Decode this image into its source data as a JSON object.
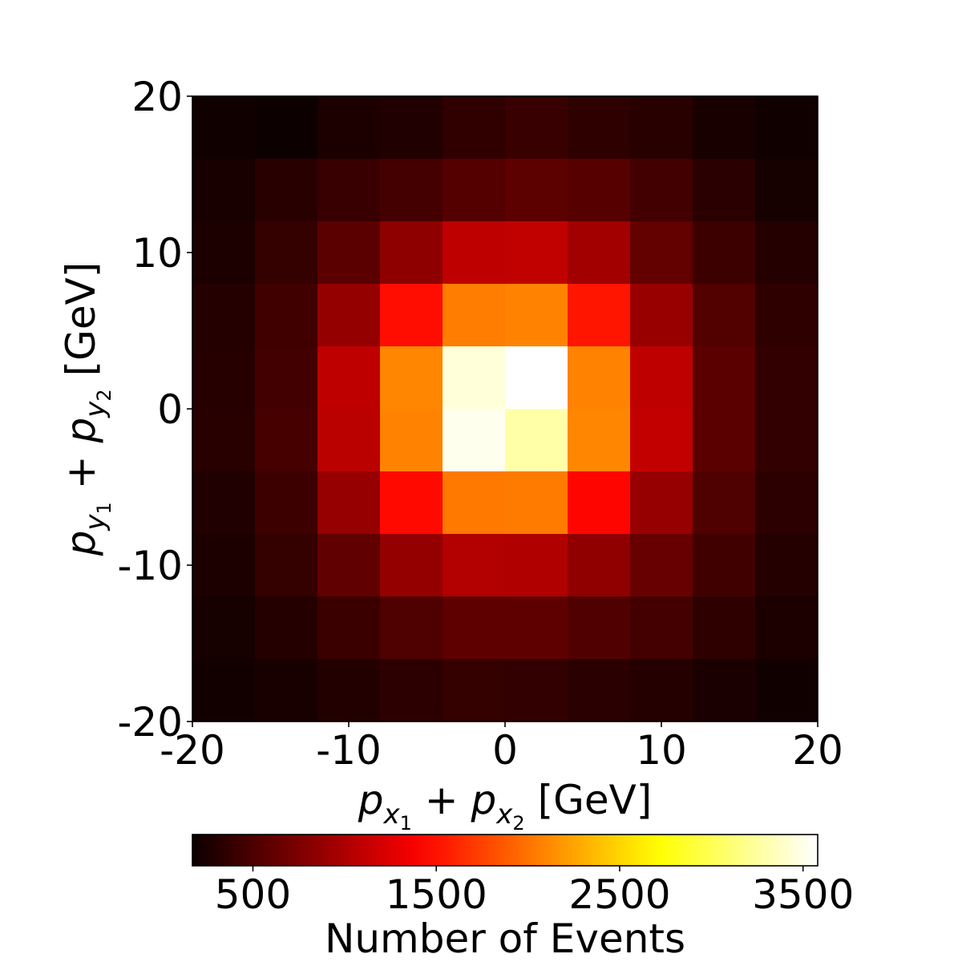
{
  "chart_data": {
    "type": "heatmap",
    "title": "",
    "xlabel": {
      "var": "p",
      "sub1": "x",
      "subsub1": "1",
      "plus": " + ",
      "sub2": "x",
      "subsub2": "2",
      "unit": " [GeV]"
    },
    "ylabel": {
      "var": "p",
      "sub1": "y",
      "subsub1": "1",
      "plus": " + ",
      "sub2": "y",
      "subsub2": "2",
      "unit": " [GeV]"
    },
    "xlim": [
      -20,
      20
    ],
    "ylim": [
      -20,
      20
    ],
    "x_edges": [
      -20,
      -16,
      -12,
      -8,
      -4,
      0,
      4,
      8,
      12,
      16,
      20
    ],
    "y_edges": [
      -20,
      -16,
      -12,
      -8,
      -4,
      0,
      4,
      8,
      12,
      16,
      20
    ],
    "x_ticks": [
      -20,
      -10,
      0,
      10,
      20
    ],
    "x_tick_labels": [
      "-20",
      "-10",
      "0",
      "10",
      "20"
    ],
    "y_ticks": [
      -20,
      -10,
      0,
      10,
      20
    ],
    "y_tick_labels": [
      "-20",
      "-10",
      "0",
      "10",
      "20"
    ],
    "colormap": "hot",
    "color_range": [
      170,
      3580
    ],
    "colorbar": {
      "label": "Number of Events",
      "ticks": [
        500,
        1500,
        2500,
        3500
      ],
      "tick_labels": [
        "500",
        "1500",
        "2500",
        "3500"
      ],
      "location": "bottom"
    },
    "grid": false,
    "values_rows_top_to_bottom": [
      [
        200,
        180,
        260,
        280,
        360,
        400,
        350,
        320,
        240,
        200
      ],
      [
        240,
        320,
        400,
        460,
        550,
        590,
        560,
        450,
        330,
        230
      ],
      [
        260,
        380,
        580,
        840,
        1090,
        1100,
        940,
        620,
        420,
        300
      ],
      [
        300,
        440,
        870,
        1480,
        2050,
        2080,
        1520,
        890,
        540,
        350
      ],
      [
        310,
        450,
        1090,
        2100,
        3450,
        3580,
        2080,
        1090,
        580,
        370
      ],
      [
        320,
        470,
        1070,
        2080,
        3520,
        3280,
        2100,
        1110,
        580,
        370
      ],
      [
        280,
        420,
        880,
        1460,
        2030,
        2040,
        1440,
        880,
        520,
        340
      ],
      [
        260,
        380,
        610,
        870,
        1030,
        1010,
        850,
        640,
        440,
        300
      ],
      [
        230,
        300,
        410,
        520,
        600,
        600,
        530,
        460,
        350,
        260
      ],
      [
        210,
        240,
        290,
        340,
        380,
        370,
        330,
        300,
        250,
        200
      ]
    ]
  }
}
